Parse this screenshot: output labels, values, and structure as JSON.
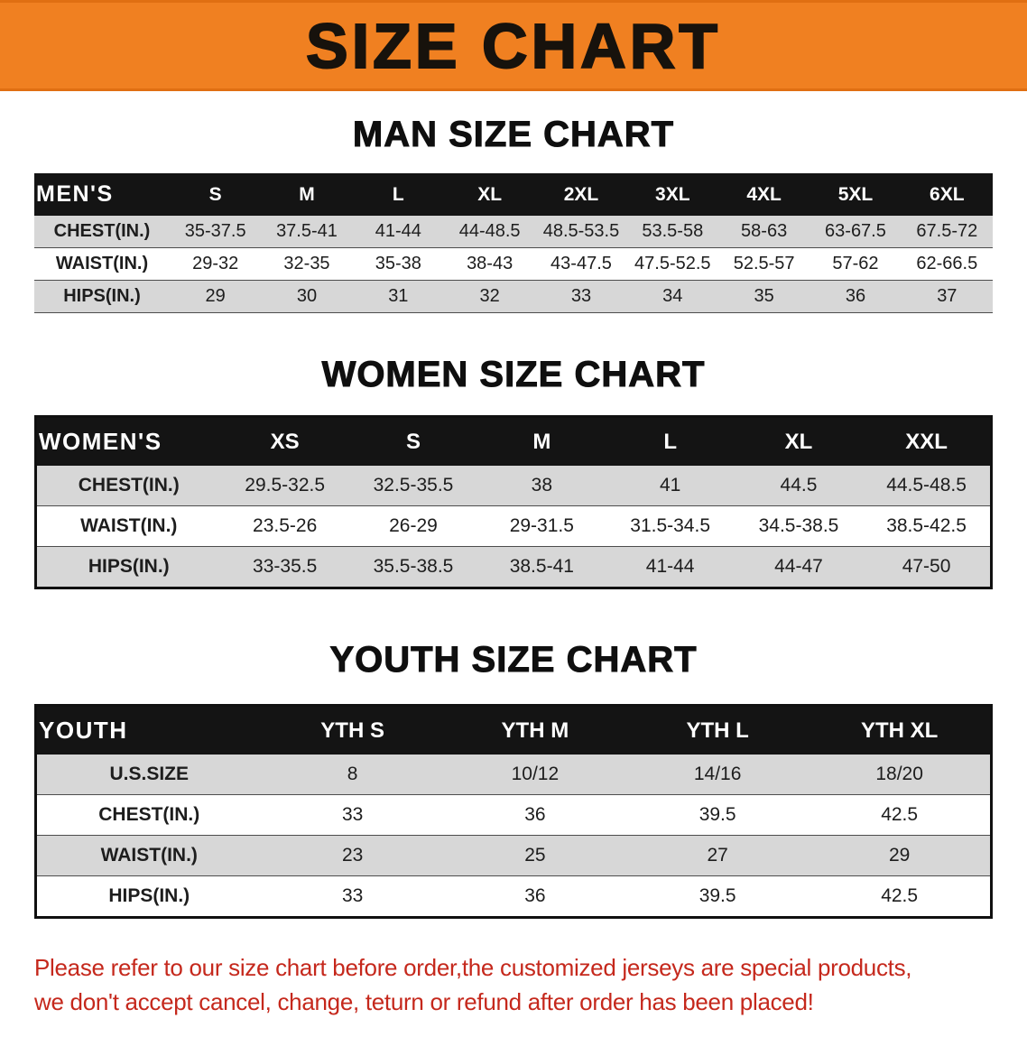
{
  "banner": {
    "title": "SIZE CHART"
  },
  "colors": {
    "banner_bg": "#F08021",
    "header_bg": "#141414",
    "row_stripe": "#D7D7D7",
    "note_red": "#C5281C"
  },
  "chart_data": [
    {
      "type": "table",
      "title": "MAN SIZE CHART",
      "columns": [
        "MEN'S",
        "S",
        "M",
        "L",
        "XL",
        "2XL",
        "3XL",
        "4XL",
        "5XL",
        "6XL"
      ],
      "rows": [
        [
          "CHEST(IN.)",
          "35-37.5",
          "37.5-41",
          "41-44",
          "44-48.5",
          "48.5-53.5",
          "53.5-58",
          "58-63",
          "63-67.5",
          "67.5-72"
        ],
        [
          "WAIST(IN.)",
          "29-32",
          "32-35",
          "35-38",
          "38-43",
          "43-47.5",
          "47.5-52.5",
          "52.5-57",
          "57-62",
          "62-66.5"
        ],
        [
          "HIPS(IN.)",
          "29",
          "30",
          "31",
          "32",
          "33",
          "34",
          "35",
          "36",
          "37"
        ]
      ]
    },
    {
      "type": "table",
      "title": "WOMEN SIZE CHART",
      "columns": [
        "WOMEN'S",
        "XS",
        "S",
        "M",
        "L",
        "XL",
        "XXL"
      ],
      "rows": [
        [
          "CHEST(IN.)",
          "29.5-32.5",
          "32.5-35.5",
          "38",
          "41",
          "44.5",
          "44.5-48.5"
        ],
        [
          "WAIST(IN.)",
          "23.5-26",
          "26-29",
          "29-31.5",
          "31.5-34.5",
          "34.5-38.5",
          "38.5-42.5"
        ],
        [
          "HIPS(IN.)",
          "33-35.5",
          "35.5-38.5",
          "38.5-41",
          "41-44",
          "44-47",
          "47-50"
        ]
      ]
    },
    {
      "type": "table",
      "title": "YOUTH SIZE CHART",
      "columns": [
        "YOUTH",
        "YTH S",
        "YTH M",
        "YTH L",
        "YTH XL"
      ],
      "rows": [
        [
          "U.S.SIZE",
          "8",
          "10/12",
          "14/16",
          "18/20"
        ],
        [
          "CHEST(IN.)",
          "33",
          "36",
          "39.5",
          "42.5"
        ],
        [
          "WAIST(IN.)",
          "23",
          "25",
          "27",
          "29"
        ],
        [
          "HIPS(IN.)",
          "33",
          "36",
          "39.5",
          "42.5"
        ]
      ]
    }
  ],
  "footer_note": {
    "line1": "Please refer to our size chart before order,the customized jerseys are special products,",
    "line2": "we don't accept cancel, change, teturn or refund after order has been placed!"
  }
}
